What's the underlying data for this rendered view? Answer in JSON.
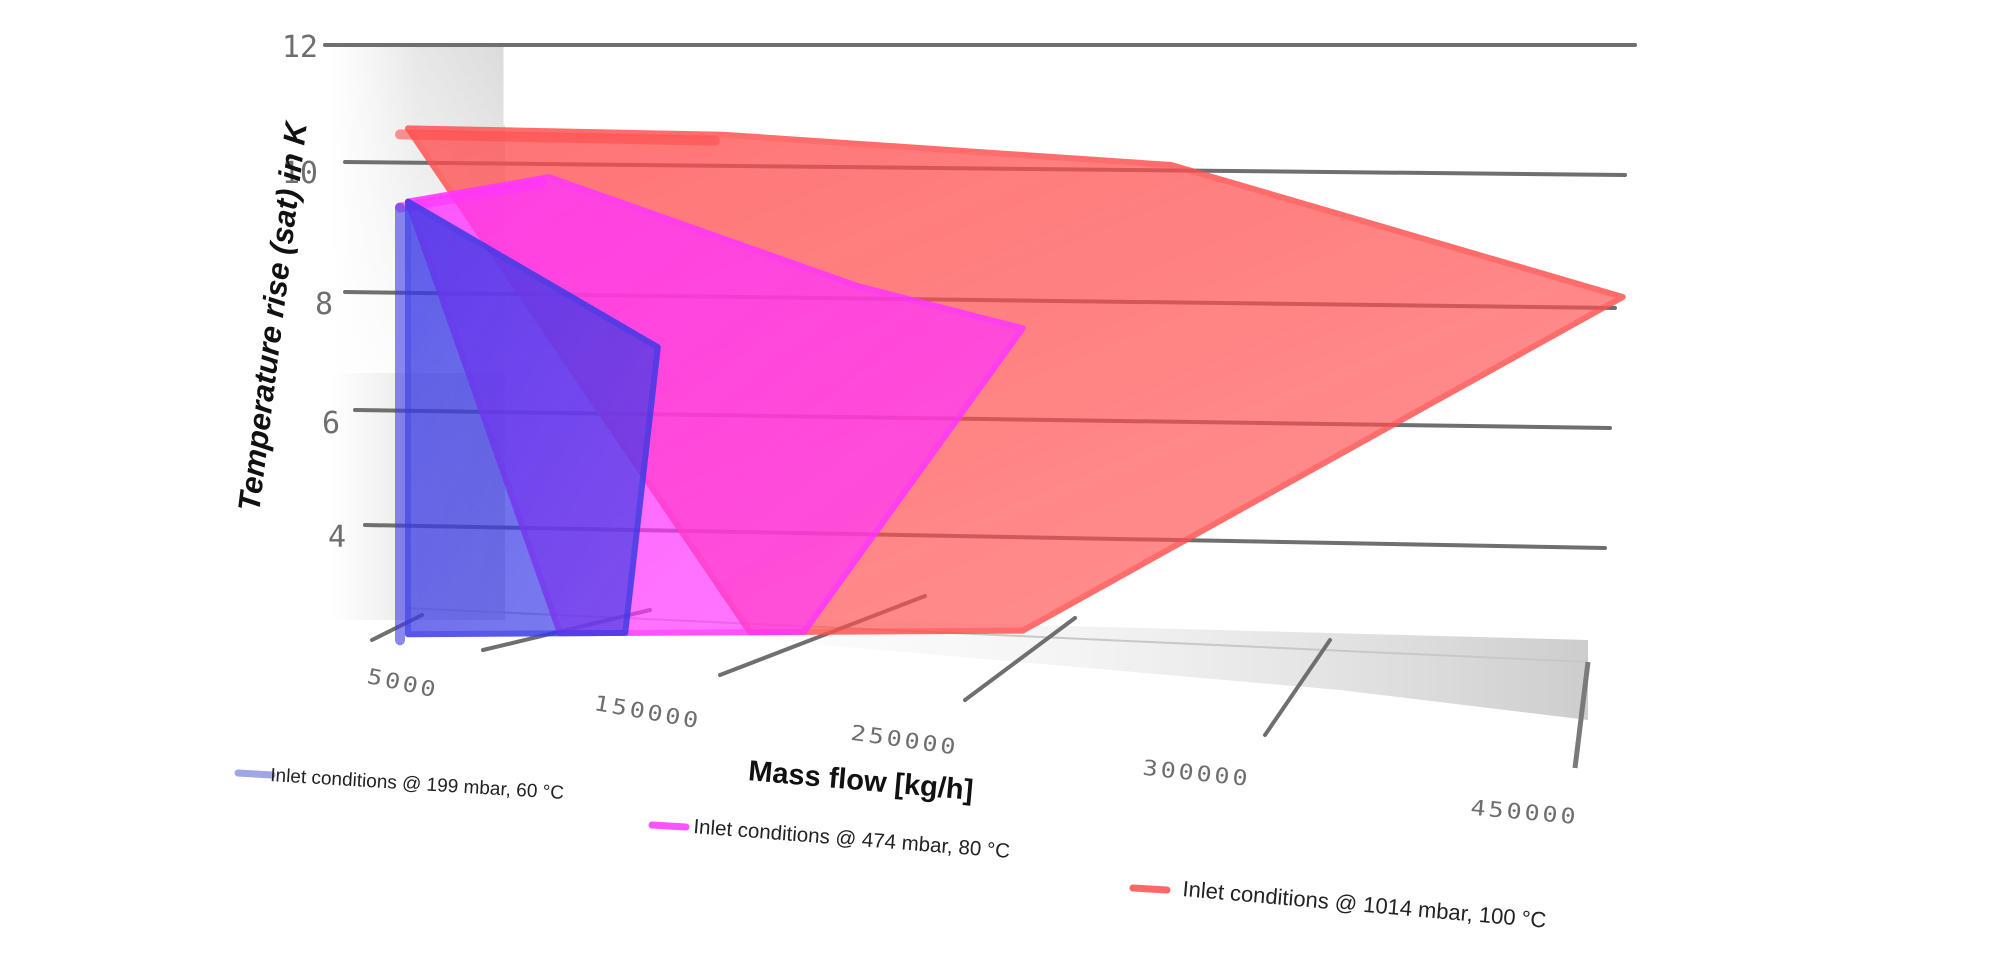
{
  "chart_data": {
    "type": "area",
    "title": "",
    "xlabel": "Mass flow [kg/h]",
    "ylabel": "Temperature rise (sat) in K",
    "x_ticks": [
      "5000",
      "150000",
      "250000",
      "300000",
      "450000"
    ],
    "y_ticks": [
      "4",
      "6",
      "8",
      "10",
      "12"
    ],
    "ylim": [
      2,
      12
    ],
    "grid": true,
    "legend_placement": "bottom",
    "render_style": "3d-perspective",
    "series": [
      {
        "name": "Inlet conditions @ 199 mbar, 60 °C",
        "color": "#3a3ae6",
        "polygon": [
          [
            5000,
            2.3
          ],
          [
            5000,
            9.4
          ],
          [
            120000,
            7.0
          ],
          [
            105000,
            2.3
          ]
        ]
      },
      {
        "name": "Inlet conditions @ 474 mbar, 80 °C",
        "color": "#ff33ff",
        "polygon": [
          [
            5000,
            9.4
          ],
          [
            70000,
            9.8
          ],
          [
            200000,
            8.0
          ],
          [
            255000,
            7.3
          ],
          [
            180000,
            2.3
          ],
          [
            75000,
            2.3
          ]
        ]
      },
      {
        "name": "Inlet conditions @ 1014 mbar, 100 °C",
        "color": "#ff4d4d",
        "polygon": [
          [
            5000,
            10.6
          ],
          [
            150000,
            10.5
          ],
          [
            280000,
            10.0
          ],
          [
            455000,
            7.8
          ],
          [
            255000,
            2.3
          ],
          [
            160000,
            2.3
          ]
        ]
      }
    ]
  }
}
